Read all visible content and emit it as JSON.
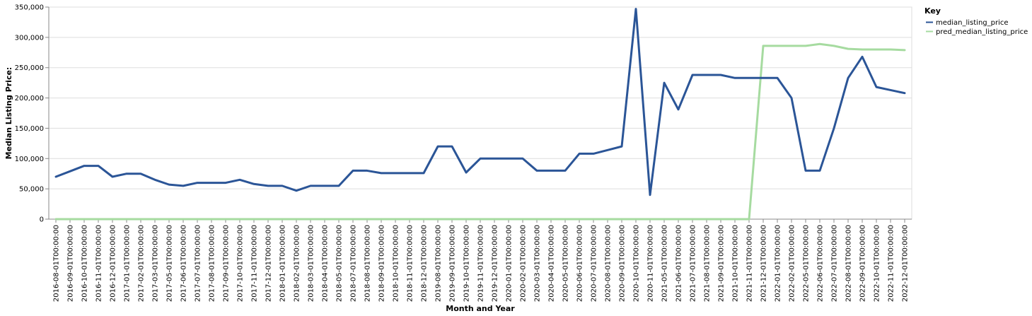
{
  "chart_data": {
    "type": "line",
    "xlabel": "Month and Year",
    "ylabel": "Median Listing Price:",
    "ylim": [
      0,
      350000
    ],
    "y_ticks": [
      "0",
      "50,000",
      "100,000",
      "150,000",
      "200,000",
      "250,000",
      "300,000",
      "350,000"
    ],
    "grid": true,
    "legend": {
      "title": "Key",
      "position": "top-right"
    },
    "categories": [
      "2016-08-01T00:00:00",
      "2016-09-01T00:00:00",
      "2016-10-01T00:00:00",
      "2016-11-01T00:00:00",
      "2016-12-01T00:00:00",
      "2017-01-01T00:00:00",
      "2017-02-01T00:00:00",
      "2017-03-01T00:00:00",
      "2017-05-01T00:00:00",
      "2017-06-01T00:00:00",
      "2017-07-01T00:00:00",
      "2017-08-01T00:00:00",
      "2017-09-01T00:00:00",
      "2017-10-01T00:00:00",
      "2017-11-01T00:00:00",
      "2017-12-01T00:00:00",
      "2018-01-01T00:00:00",
      "2018-02-01T00:00:00",
      "2018-03-01T00:00:00",
      "2018-04-01T00:00:00",
      "2018-05-01T00:00:00",
      "2018-07-01T00:00:00",
      "2018-08-01T00:00:00",
      "2018-09-01T00:00:00",
      "2018-10-01T00:00:00",
      "2018-11-01T00:00:00",
      "2018-12-01T00:00:00",
      "2019-08-01T00:00:00",
      "2019-09-01T00:00:00",
      "2019-10-01T00:00:00",
      "2019-11-01T00:00:00",
      "2019-12-01T00:00:00",
      "2020-01-01T00:00:00",
      "2020-02-01T00:00:00",
      "2020-03-01T00:00:00",
      "2020-04-01T00:00:00",
      "2020-05-01T00:00:00",
      "2020-06-01T00:00:00",
      "2020-07-01T00:00:00",
      "2020-08-01T00:00:00",
      "2020-09-01T00:00:00",
      "2020-10-01T00:00:00",
      "2020-11-01T00:00:00",
      "2021-05-01T00:00:00",
      "2021-06-01T00:00:00",
      "2021-07-01T00:00:00",
      "2021-08-01T00:00:00",
      "2021-09-01T00:00:00",
      "2021-10-01T00:00:00",
      "2021-11-01T00:00:00",
      "2021-12-01T00:00:00",
      "2022-01-01T00:00:00",
      "2022-02-01T00:00:00",
      "2022-05-01T00:00:00",
      "2022-06-01T00:00:00",
      "2022-07-01T00:00:00",
      "2022-08-01T00:00:00",
      "2022-09-01T00:00:00",
      "2022-10-01T00:00:00",
      "2022-11-01T00:00:00",
      "2022-12-01T00:00:00"
    ],
    "series": [
      {
        "name": "median_listing_price",
        "color": "#2b5597",
        "values": [
          70000,
          79000,
          88000,
          88000,
          70000,
          75000,
          75000,
          65000,
          57000,
          55000,
          60000,
          60000,
          60000,
          65000,
          58000,
          55000,
          55000,
          47000,
          55000,
          55000,
          55000,
          80000,
          80000,
          76000,
          76000,
          76000,
          76000,
          120000,
          120000,
          77000,
          100000,
          100000,
          100000,
          100000,
          80000,
          80000,
          80000,
          108000,
          108000,
          114000,
          120000,
          347000,
          40000,
          225000,
          181000,
          238000,
          238000,
          238000,
          233000,
          233000,
          233000,
          233000,
          200000,
          80000,
          80000,
          150000,
          233000,
          268000,
          218000,
          213000,
          208000
        ]
      },
      {
        "name": "pred_median_listing_price",
        "color": "#a6dba0",
        "values": [
          0,
          0,
          0,
          0,
          0,
          0,
          0,
          0,
          0,
          0,
          0,
          0,
          0,
          0,
          0,
          0,
          0,
          0,
          0,
          0,
          0,
          0,
          0,
          0,
          0,
          0,
          0,
          0,
          0,
          0,
          0,
          0,
          0,
          0,
          0,
          0,
          0,
          0,
          0,
          0,
          0,
          0,
          0,
          0,
          0,
          0,
          0,
          0,
          0,
          0,
          286000,
          286000,
          286000,
          286000,
          289000,
          286000,
          281000,
          280000,
          280000,
          280000,
          279000
        ]
      }
    ]
  }
}
